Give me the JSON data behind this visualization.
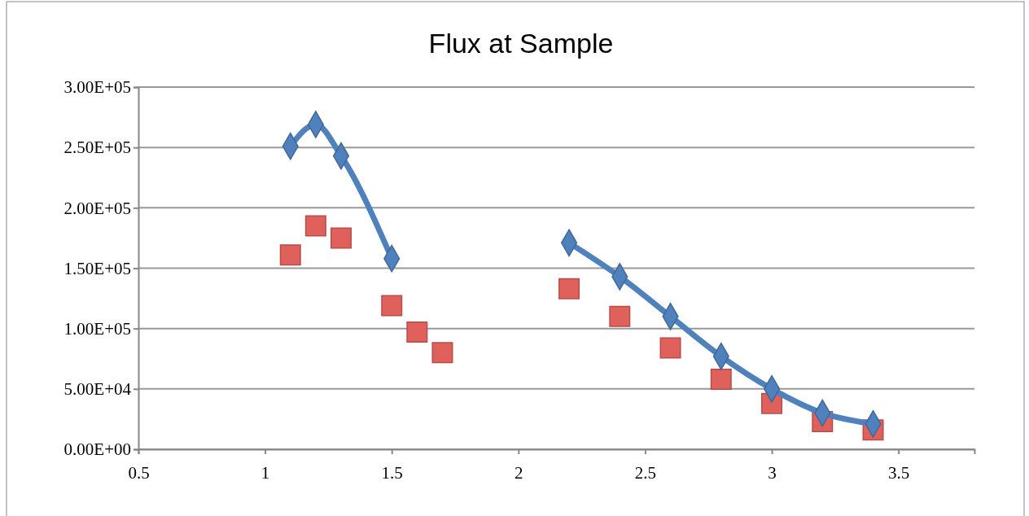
{
  "chart_data": {
    "type": "line",
    "title": "Flux at Sample",
    "x": [
      1.1,
      1.2,
      1.3,
      1.5,
      1.6,
      1.7,
      2.2,
      2.4,
      2.6,
      2.8,
      3.0,
      3.2,
      3.4
    ],
    "series": [
      {
        "color": "#4f81bd",
        "marker": "diamond",
        "values": [
          251000,
          269000,
          243000,
          158000,
          null,
          null,
          171000,
          143000,
          110000,
          77000,
          50000,
          30000,
          21000
        ]
      },
      {
        "type": "scatter",
        "color": "#e0605c",
        "marker": "square",
        "values": [
          161000,
          185000,
          175000,
          119000,
          97000,
          80000,
          133000,
          110000,
          84000,
          58000,
          38000,
          23000,
          16000
        ]
      }
    ],
    "xlim": [
      0.5,
      3.8
    ],
    "xticks": [
      0.5,
      1,
      1.5,
      2,
      2.5,
      3,
      3.5
    ],
    "ylim": [
      0,
      300000
    ],
    "yticks": [
      {
        "value": 0,
        "label": "0.00E+00"
      },
      {
        "value": 50000,
        "label": "5.00E+04"
      },
      {
        "value": 100000,
        "label": "1.00E+05"
      },
      {
        "value": 150000,
        "label": "1.50E+05"
      },
      {
        "value": 200000,
        "label": "2.00E+05"
      },
      {
        "value": 250000,
        "label": "2.50E+05"
      },
      {
        "value": 300000,
        "label": "3.00E+05"
      }
    ],
    "grid": "y"
  }
}
